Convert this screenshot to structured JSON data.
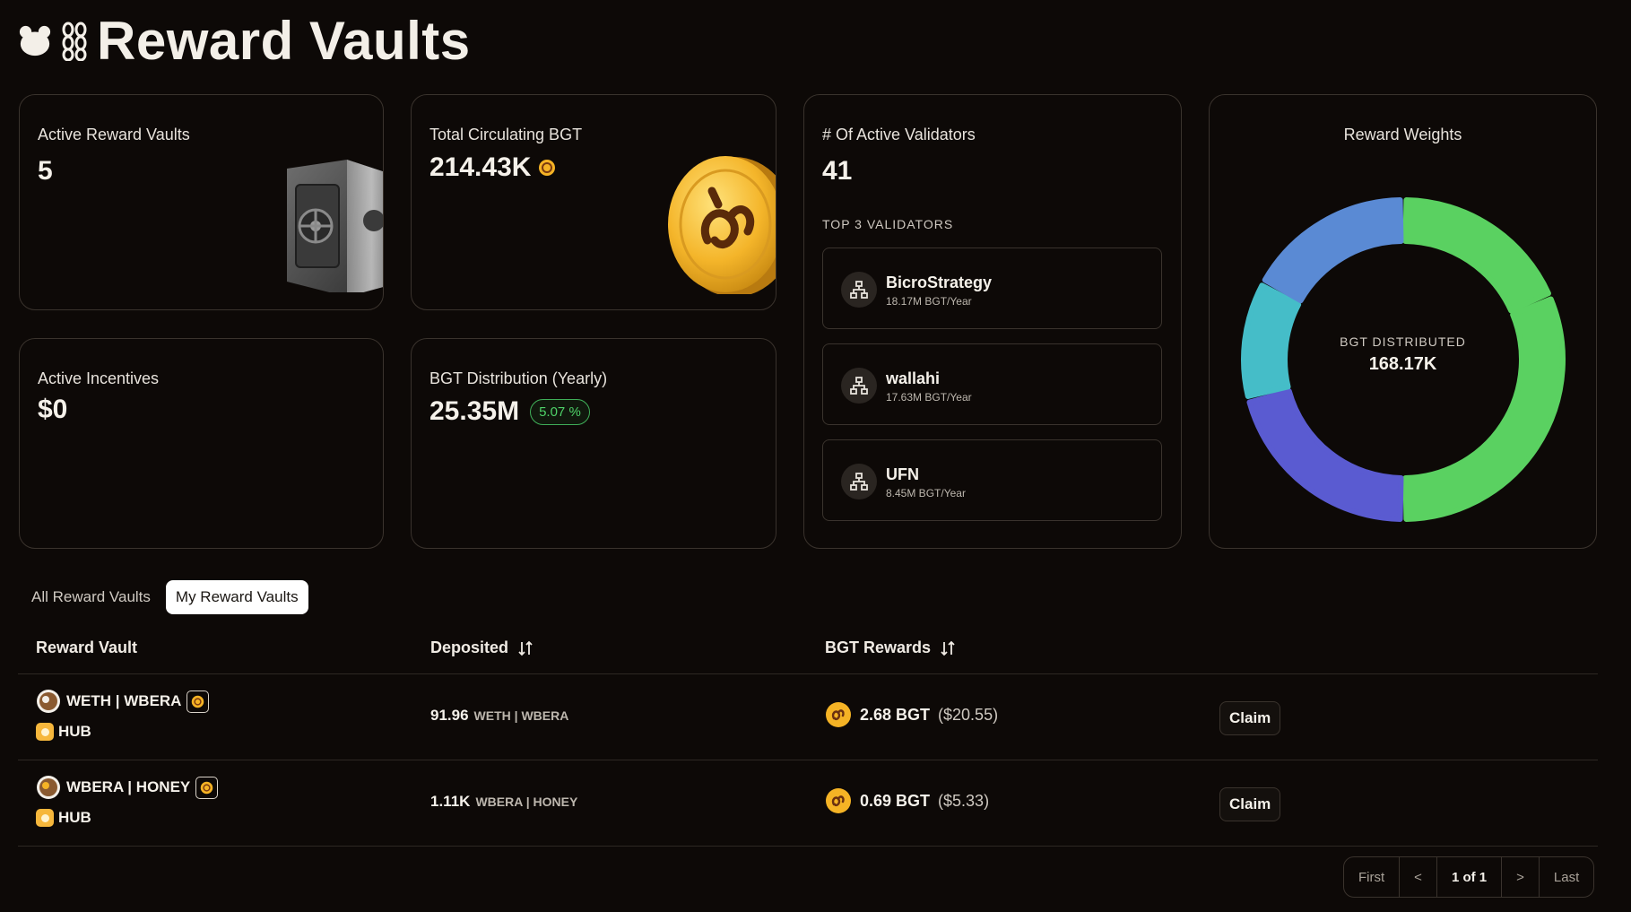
{
  "header": {
    "title": "Reward Vaults"
  },
  "stats": {
    "active_vaults": {
      "label": "Active Reward Vaults",
      "value": "5"
    },
    "circulating_bgt": {
      "label": "Total Circulating BGT",
      "value": "214.43K"
    },
    "active_incentives": {
      "label": "Active Incentives",
      "value": "$0"
    },
    "distribution": {
      "label": "BGT Distribution (Yearly)",
      "value": "25.35M",
      "change": "5.07 %"
    }
  },
  "validators": {
    "label": "# Of Active Validators",
    "value": "41",
    "top_label": "TOP 3 VALIDATORS",
    "items": [
      {
        "name": "BicroStrategy",
        "rate": "18.17M BGT/Year"
      },
      {
        "name": "wallahi",
        "rate": "17.63M BGT/Year"
      },
      {
        "name": "UFN",
        "rate": "8.45M BGT/Year"
      }
    ]
  },
  "weights": {
    "title": "Reward Weights",
    "center_label": "BGT DISTRIBUTED",
    "center_value": "168.17K",
    "colors": [
      "#5ad161",
      "#5ad161",
      "#5a5bd1",
      "#45bdc8",
      "#5a8ad4"
    ],
    "segments": [
      {
        "share": 0.185
      },
      {
        "share": 0.315
      },
      {
        "share": 0.21
      },
      {
        "share": 0.12
      },
      {
        "share": 0.17
      }
    ]
  },
  "tabs": {
    "all": "All Reward Vaults",
    "mine": "My Reward Vaults"
  },
  "table": {
    "col_vault": "Reward Vault",
    "col_deposited": "Deposited",
    "col_rewards": "BGT Rewards",
    "rows": [
      {
        "name": "WETH | WBERA",
        "source": "HUB",
        "deposit_amt": "91.96",
        "deposit_tok": "WETH | WBERA",
        "reward_amt": "2.68 BGT",
        "reward_usd": "($20.55)",
        "claim": "Claim"
      },
      {
        "name": "WBERA | HONEY",
        "source": "HUB",
        "deposit_amt": "1.11K",
        "deposit_tok": "WBERA | HONEY",
        "reward_amt": "0.69 BGT",
        "reward_usd": "($5.33)",
        "claim": "Claim"
      }
    ]
  },
  "pager": {
    "first": "First",
    "prev": "<",
    "current": "1 of 1",
    "next": ">",
    "last": "Last"
  }
}
